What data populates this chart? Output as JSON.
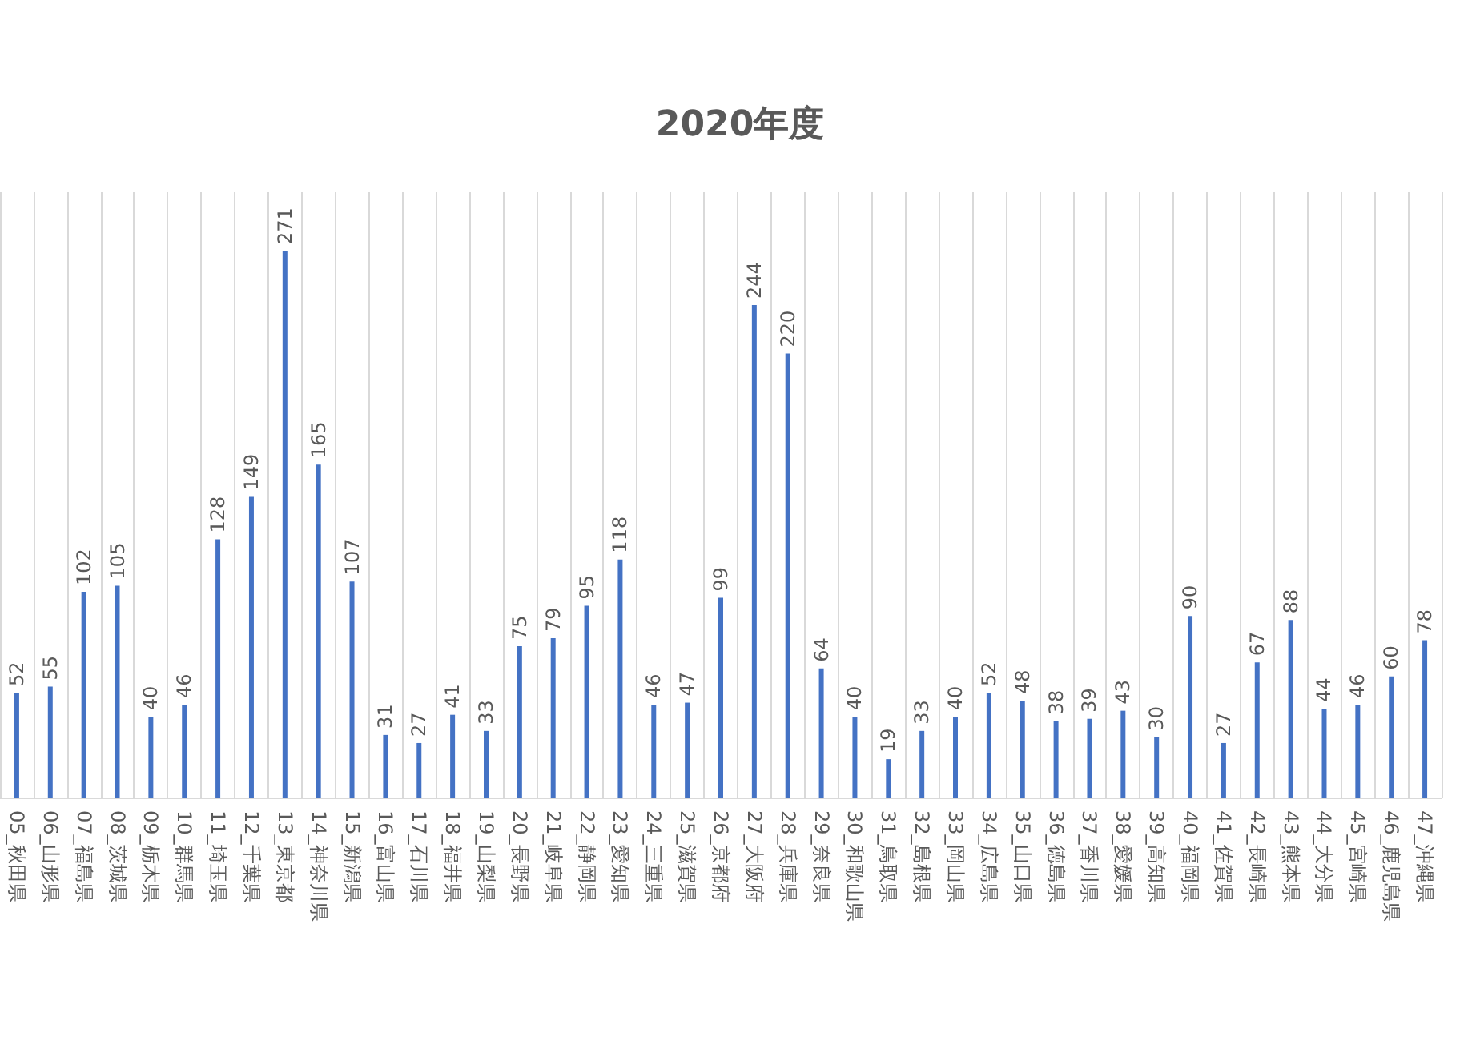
{
  "chart_data": {
    "type": "bar",
    "title": "2020年度",
    "categories": [
      "05_秋田県",
      "06_山形県",
      "07_福島県",
      "08_茨城県",
      "09_栃木県",
      "10_群馬県",
      "11_埼玉県",
      "12_千葉県",
      "13_東京都",
      "14_神奈川県",
      "15_新潟県",
      "16_富山県",
      "17_石川県",
      "18_福井県",
      "19_山梨県",
      "20_長野県",
      "21_岐阜県",
      "22_静岡県",
      "23_愛知県",
      "24_三重県",
      "25_滋賀県",
      "26_京都府",
      "27_大阪府",
      "28_兵庫県",
      "29_奈良県",
      "30_和歌山県",
      "31_鳥取県",
      "32_島根県",
      "33_岡山県",
      "34_広島県",
      "35_山口県",
      "36_徳島県",
      "37_香川県",
      "38_愛媛県",
      "39_高知県",
      "40_福岡県",
      "41_佐賀県",
      "42_長崎県",
      "43_熊本県",
      "44_大分県",
      "45_宮崎県",
      "46_鹿児島県",
      "47_沖縄県"
    ],
    "values": [
      52,
      55,
      102,
      105,
      40,
      46,
      128,
      149,
      271,
      165,
      107,
      31,
      27,
      41,
      33,
      75,
      79,
      95,
      118,
      46,
      47,
      99,
      244,
      220,
      64,
      40,
      19,
      33,
      40,
      52,
      48,
      38,
      39,
      43,
      30,
      90,
      27,
      67,
      88,
      44,
      46,
      60,
      78
    ],
    "color": "#4472c4",
    "data_labels": true,
    "grid": "x"
  }
}
